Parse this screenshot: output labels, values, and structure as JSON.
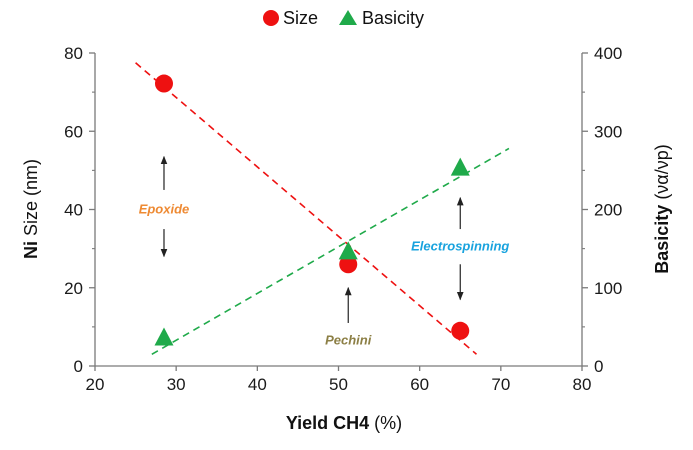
{
  "chart_data": {
    "type": "scatter",
    "legend": {
      "position": "top-center",
      "entries": [
        "Size",
        "Basicity"
      ]
    },
    "x": {
      "label_bold": "Yield CH4",
      "label_rest": " (%)",
      "range": [
        20,
        80
      ],
      "ticks": [
        "20",
        "30",
        "40",
        "50",
        "60",
        "70",
        "80"
      ]
    },
    "y_left": {
      "label_bold": "Ni",
      "label_rest": " Size (nm)",
      "range": [
        0,
        80
      ],
      "ticks": [
        "0",
        "20",
        "40",
        "60",
        "80"
      ]
    },
    "y_right": {
      "label_bold": "Basicity",
      "label_rest": " (να/νp)",
      "range": [
        0,
        400
      ],
      "ticks": [
        "0",
        "100",
        "200",
        "300",
        "400"
      ]
    },
    "series": [
      {
        "name": "Size",
        "axis": "left",
        "marker": "circle",
        "color": "#ee1111",
        "points": [
          {
            "x": 28.5,
            "y": 72.2
          },
          {
            "x": 51.2,
            "y": 26.0
          },
          {
            "x": 65.0,
            "y": 9.0
          }
        ],
        "trend": {
          "x1": 25.0,
          "y1": 77.5,
          "x2": 67.0,
          "y2": 3.0
        }
      },
      {
        "name": "Basicity",
        "axis": "right",
        "marker": "triangle",
        "color": "#1faa4a",
        "points": [
          {
            "x": 28.5,
            "y": 35
          },
          {
            "x": 51.2,
            "y": 145
          },
          {
            "x": 65.0,
            "y": 252
          }
        ],
        "trend": {
          "x1": 27.0,
          "y1": 15,
          "x2": 71.0,
          "y2": 278
        }
      }
    ],
    "annotations": [
      {
        "text": "Epoxide",
        "color": "#ee8a33",
        "x": 28.5,
        "y": 40
      },
      {
        "text": "Pechini",
        "color": "#8c7f45",
        "x": 51.2,
        "y": 6.5
      },
      {
        "text": "Electrospinning",
        "color": "#19a3de",
        "x": 65.0,
        "y": 30.5
      }
    ],
    "arrows": [
      {
        "x": 28.5,
        "y_from": 45,
        "y_to": 53.5
      },
      {
        "x": 28.5,
        "y_from": 35,
        "y_to": 28
      },
      {
        "x": 51.2,
        "y_from": 11,
        "y_to": 20
      },
      {
        "x": 65.0,
        "y_from": 35,
        "y_to": 43
      },
      {
        "x": 65.0,
        "y_from": 26,
        "y_to": 17
      }
    ]
  }
}
